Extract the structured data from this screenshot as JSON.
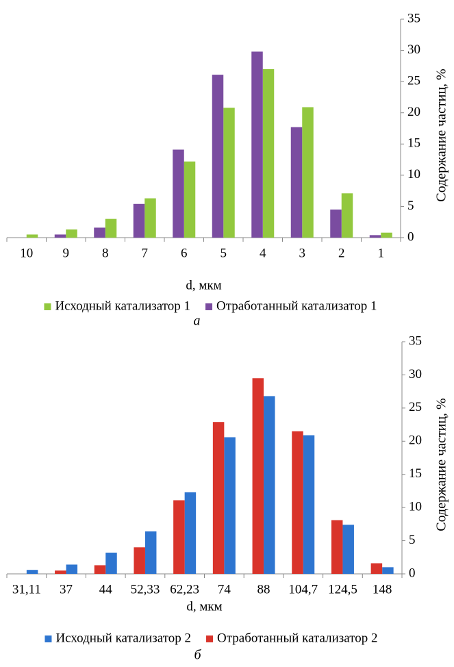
{
  "chart_data": [
    {
      "type": "bar",
      "caption": "а",
      "x_label": "d, мкм",
      "y_label": "Содержание частиц, %",
      "categories": [
        "10",
        "9",
        "8",
        "7",
        "6",
        "5",
        "4",
        "3",
        "2",
        "1"
      ],
      "series": [
        {
          "name": "Исходный катализатор 1",
          "color": "#92c83e",
          "values": [
            0.5,
            1.3,
            3.0,
            6.3,
            12.2,
            20.8,
            27.0,
            20.9,
            7.1,
            0.8
          ]
        },
        {
          "name": "Отработанный катализатор 1",
          "color": "#7a4ca0",
          "values": [
            0,
            0.5,
            1.6,
            5.4,
            14.1,
            26.1,
            29.8,
            17.7,
            4.5,
            0.4
          ]
        }
      ],
      "ylim": [
        0,
        35
      ],
      "yticks": [
        0,
        5,
        10,
        15,
        20,
        25,
        30,
        35
      ],
      "legend": "bottom"
    },
    {
      "type": "bar",
      "caption": "б",
      "x_label": "d, мкм",
      "y_label": "Содержание частиц, %",
      "categories": [
        "31,11",
        "37",
        "44",
        "52,33",
        "62,23",
        "74",
        "88",
        "104,7",
        "124,5",
        "148"
      ],
      "series": [
        {
          "name": "Исходный катализатор 2",
          "color": "#2e75d0",
          "values": [
            0.6,
            1.4,
            3.2,
            6.4,
            12.3,
            20.6,
            26.8,
            20.9,
            7.4,
            1.0
          ]
        },
        {
          "name": "Отработанный катализатор 2",
          "color": "#d9342b",
          "values": [
            0,
            0.5,
            1.3,
            4.0,
            11.1,
            22.9,
            29.5,
            21.5,
            8.1,
            1.6
          ]
        }
      ],
      "ylim": [
        0,
        35
      ],
      "yticks": [
        0,
        5,
        10,
        15,
        20,
        25,
        30,
        35
      ],
      "legend": "bottom"
    }
  ]
}
